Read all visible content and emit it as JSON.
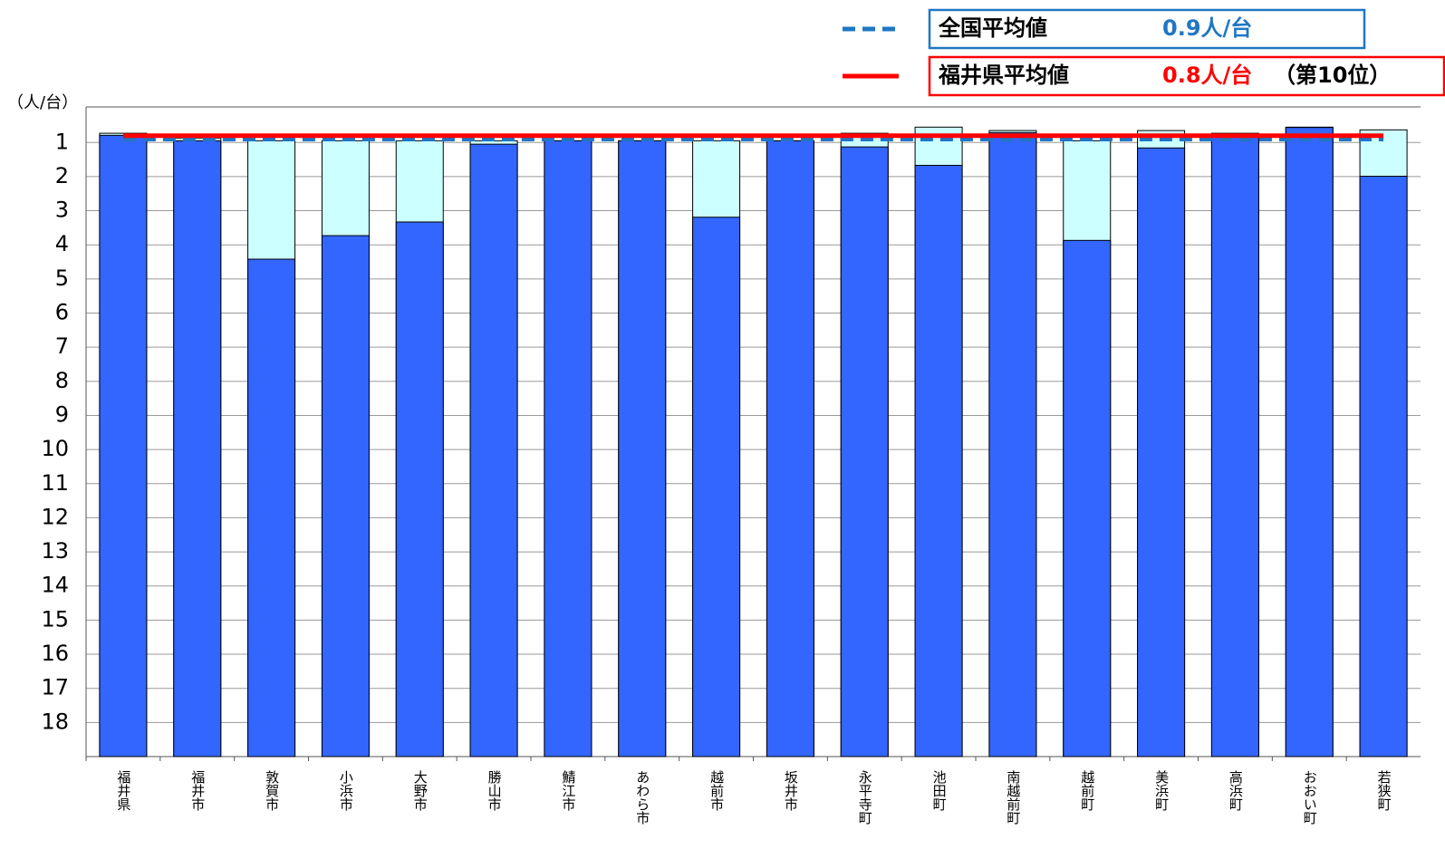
{
  "chart_data": {
    "type": "bar",
    "y_label": "（人/台）",
    "categories": [
      "福井県",
      "福井市",
      "敦賀市",
      "小浜市",
      "大野市",
      "勝山市",
      "鯖江市",
      "あわら市",
      "越前市",
      "坂井市",
      "永平寺町",
      "池田町",
      "南越前町",
      "越前町",
      "美浜町",
      "高浜町",
      "おおい町",
      "若狭町"
    ],
    "series": [
      {
        "color": "#ccffff",
        "values": [
          0.73,
          0.87,
          0.95,
          0.95,
          0.95,
          0.95,
          0.95,
          0.95,
          0.95,
          0.95,
          0.73,
          0.55,
          0.65,
          0.95,
          0.65,
          0.73,
          0.55,
          0.63
        ]
      },
      {
        "color": "#3366ff",
        "values": [
          0.79,
          0.95,
          4.42,
          3.73,
          3.33,
          1.05,
          0.95,
          0.95,
          3.19,
          0.95,
          1.13,
          1.67,
          0.71,
          3.87,
          1.16,
          0.79,
          0.56,
          1.99
        ]
      }
    ],
    "reference_lines": [
      {
        "name": "全国平均値",
        "value": 0.9,
        "value_label": "0.9人/台",
        "color": "#1f77c4",
        "style": "dashed"
      },
      {
        "name": "福井県平均値",
        "value": 0.8,
        "value_label": "0.8人/台",
        "rank_label": "（第10位）",
        "color": "#ff0000",
        "style": "solid"
      }
    ],
    "ylim": [
      0,
      19
    ],
    "y_reversed": true,
    "yticks": [
      1,
      2,
      3,
      4,
      5,
      6,
      7,
      8,
      9,
      10,
      11,
      12,
      13,
      14,
      15,
      16,
      17,
      18
    ],
    "grid": true
  }
}
